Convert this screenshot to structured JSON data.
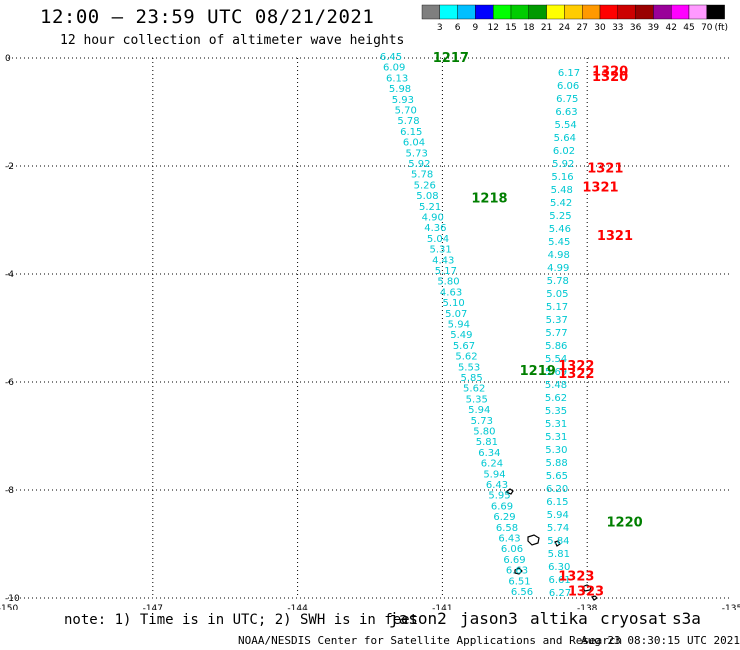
{
  "header": {
    "title": "12:00 — 23:59 UTC 08/21/2021",
    "subtitle": "12 hour collection of altimeter wave heights"
  },
  "legend": {
    "unit": "(ft)",
    "bins": [
      {
        "label": "3",
        "color": "#7f7f7f"
      },
      {
        "label": "6",
        "color": "#00ffff"
      },
      {
        "label": "9",
        "color": "#00bfff"
      },
      {
        "label": "12",
        "color": "#0000ff"
      },
      {
        "label": "15",
        "color": "#00ff00"
      },
      {
        "label": "18",
        "color": "#00cc00"
      },
      {
        "label": "21",
        "color": "#009900"
      },
      {
        "label": "24",
        "color": "#ffff00"
      },
      {
        "label": "27",
        "color": "#ffcc00"
      },
      {
        "label": "30",
        "color": "#ff9900"
      },
      {
        "label": "33",
        "color": "#ff0000"
      },
      {
        "label": "36",
        "color": "#cc0000"
      },
      {
        "label": "39",
        "color": "#990000"
      },
      {
        "label": "42",
        "color": "#990099"
      },
      {
        "label": "45",
        "color": "#ff00ff"
      },
      {
        "label": "70",
        "color": "#ff99ff"
      },
      {
        "label": "",
        "color": "#000000"
      }
    ]
  },
  "map": {
    "lon_range": [
      -150,
      -135
    ],
    "lat_range": [
      -10,
      0
    ],
    "lon_ticks": [
      "-150",
      "-147",
      "-144",
      "-141",
      "-138",
      "-135"
    ],
    "lat_ticks": [
      "0",
      "-2",
      "-4",
      "-6",
      "-8",
      "-10"
    ],
    "swh_color": "#00c8d2",
    "track_a": [
      "6.45",
      "6.09",
      "6.13",
      "5.98",
      "5.93",
      "5.70",
      "5.78",
      "6.15",
      "6.04",
      "5.73",
      "5.92",
      "5.78",
      "5.26",
      "5.08",
      "5.21",
      "4.90",
      "4.36",
      "5.04",
      "5.31",
      "4.43",
      "5.17",
      "5.80",
      "4.63",
      "5.10",
      "5.07",
      "5.94",
      "5.49",
      "5.67",
      "5.62",
      "5.53",
      "5.85",
      "5.62",
      "5.35",
      "5.94",
      "5.73",
      "5.80",
      "5.81",
      "6.34",
      "6.24",
      "5.94",
      "6.43",
      "5.95",
      "6.69",
      "6.29",
      "6.58",
      "6.43",
      "6.06",
      "6.69",
      "6.63",
      "6.51",
      "6.56"
    ],
    "track_b": [
      "6.17",
      "6.06",
      "6.75",
      "6.63",
      "5.54",
      "5.64",
      "6.02",
      "5.92",
      "5.16",
      "5.48",
      "5.42",
      "5.25",
      "5.46",
      "5.45",
      "4.98",
      "4.99",
      "5.78",
      "5.05",
      "5.17",
      "5.37",
      "5.77",
      "5.86",
      "5.54",
      "5.69",
      "5.48",
      "5.62",
      "5.35",
      "5.31",
      "5.31",
      "5.30",
      "5.88",
      "5.65",
      "6.20",
      "6.15",
      "5.94",
      "5.74",
      "5.84",
      "5.81",
      "6.30",
      "6.61",
      "6.27"
    ],
    "times_green": [
      {
        "text": "1217",
        "lon": -141.2,
        "lat": 0.0
      },
      {
        "text": "1218",
        "lon": -140.4,
        "lat": -2.6
      },
      {
        "text": "1219",
        "lon": -139.4,
        "lat": -5.8
      },
      {
        "text": "1220",
        "lon": -137.6,
        "lat": -8.6
      }
    ],
    "times_red": [
      {
        "text": "1320",
        "lon": -137.9,
        "lat": -0.25
      },
      {
        "text": "1320",
        "lon": -137.9,
        "lat": -0.35
      },
      {
        "text": "1321",
        "lon": -138.0,
        "lat": -2.05
      },
      {
        "text": "1321",
        "lon": -138.1,
        "lat": -2.4
      },
      {
        "text": "1321",
        "lon": -137.8,
        "lat": -3.3
      },
      {
        "text": "1322",
        "lon": -138.6,
        "lat": -5.7
      },
      {
        "text": "1322",
        "lon": -138.6,
        "lat": -5.85
      },
      {
        "text": "1323",
        "lon": -138.6,
        "lat": -9.6
      },
      {
        "text": "1323",
        "lon": -138.4,
        "lat": -9.88
      }
    ]
  },
  "footer": {
    "note": "note:  1) Time is in UTC;  2) SWH is in feet",
    "missions": [
      {
        "name": "jason2",
        "color": "#0000ff"
      },
      {
        "name": "jason3",
        "color": "#007f00"
      },
      {
        "name": "altika",
        "color": "#ff9900"
      },
      {
        "name": "cryosat",
        "color": "#ff0000"
      },
      {
        "name": "s3a",
        "color": "#990000"
      }
    ],
    "credit": "NOAA/NESDIS Center for Satellite Applications and Research",
    "timestamp": "Aug 23 08:30:15 UTC 2021"
  }
}
